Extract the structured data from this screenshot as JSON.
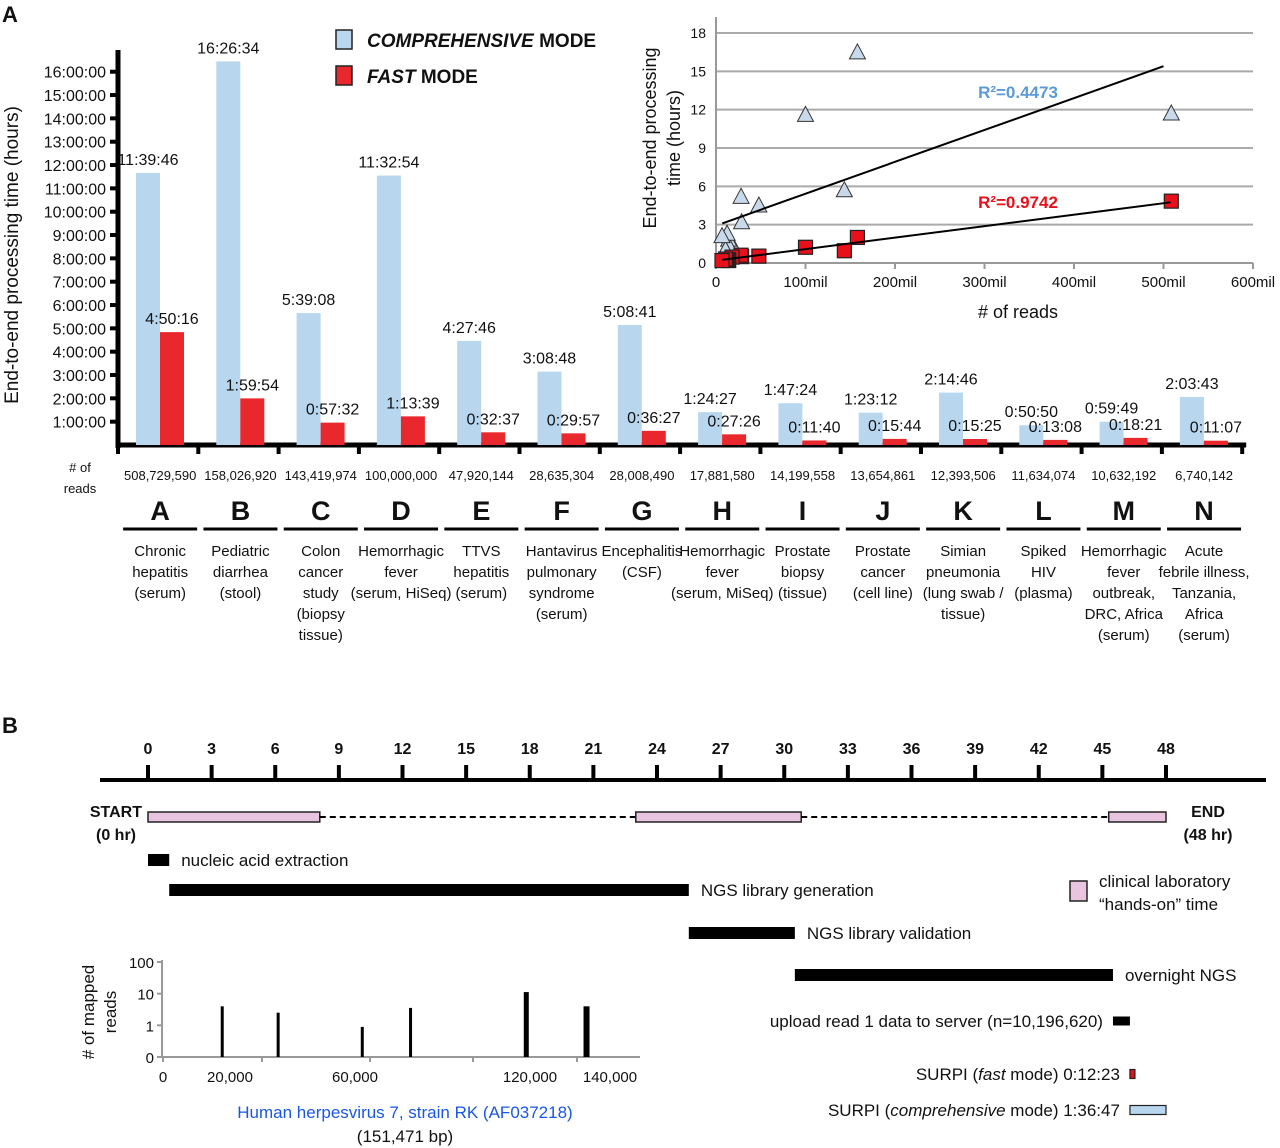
{
  "panel_labels": {
    "a": "A",
    "b": "B"
  },
  "chart_data": [
    {
      "type": "bar",
      "id": "processing-time-bars",
      "ylabel": "End-to-end processing time (hours)",
      "ylim_hours": [
        0,
        16.8
      ],
      "yticks": [
        "1:00:00",
        "2:00:00",
        "3:00:00",
        "4:00:00",
        "5:00:00",
        "6:00:00",
        "7:00:00",
        "8:00:00",
        "9:00:00",
        "10:00:00",
        "11:00:00",
        "12:00:00",
        "13:00:00",
        "14:00:00",
        "15:00:00",
        "16:00:00"
      ],
      "legend": {
        "placement": "top-center",
        "items": [
          {
            "italic": "COMPREHENSIVE",
            "rest": " MODE",
            "color": "#b8d6ee"
          },
          {
            "italic": "FAST",
            "rest": " MODE",
            "color": "#e8282c"
          }
        ]
      },
      "reads_label": [
        "# of",
        "reads"
      ],
      "categories": [
        "A",
        "B",
        "C",
        "D",
        "E",
        "F",
        "G",
        "H",
        "I",
        "J",
        "K",
        "L",
        "M",
        "N"
      ],
      "reads": [
        "508,729,590",
        "158,026,920",
        "143,419,974",
        "100,000,000",
        "47,920,144",
        "28,635,304",
        "28,008,490",
        "17,881,580",
        "14,199,558",
        "13,654,861",
        "12,393,506",
        "11,634,074",
        "10,632,192",
        "6,740,142"
      ],
      "descriptions": [
        [
          "Chronic",
          "hepatitis",
          "(serum)"
        ],
        [
          "Pediatric",
          "diarrhea",
          "(stool)"
        ],
        [
          "Colon",
          "cancer",
          "study",
          "(biopsy",
          "tissue)"
        ],
        [
          "Hemorrhagic",
          "fever",
          "(serum, HiSeq)"
        ],
        [
          "TTVS",
          "hepatitis",
          "(serum)"
        ],
        [
          "Hantavirus",
          "pulmonary",
          "syndrome",
          "(serum)"
        ],
        [
          "Encephalitis",
          "(CSF)"
        ],
        [
          "Hemorrhagic",
          "fever",
          "(serum, MiSeq)"
        ],
        [
          "Prostate",
          "biopsy",
          "(tissue)"
        ],
        [
          "Prostate",
          "cancer",
          "(cell line)"
        ],
        [
          "Simian",
          "pneumonia",
          "(lung swab /",
          "tissue)"
        ],
        [
          "Spiked",
          "HIV",
          "(plasma)"
        ],
        [
          "Hemorrhagic",
          "fever",
          "outbreak,",
          "DRC, Africa",
          "(serum)"
        ],
        [
          "Acute",
          "febrile illness,",
          "Tanzania,",
          "Africa",
          "(serum)"
        ]
      ],
      "series": [
        {
          "name": "COMPREHENSIVE MODE",
          "color": "#b8d6ee",
          "labels": [
            "11:39:46",
            "16:26:34",
            "5:39:08",
            "11:32:54",
            "4:27:46",
            "3:08:48",
            "5:08:41",
            "1:24:27",
            "1:47:24",
            "1:23:12",
            "2:14:46",
            "0:50:50",
            "0:59:49",
            "2:03:43"
          ]
        },
        {
          "name": "FAST MODE",
          "color": "#e8282c",
          "labels": [
            "4:50:16",
            "1:59:54",
            "0:57:32",
            "1:13:39",
            "0:32:37",
            "0:29:57",
            "0:36:27",
            "0:27:26",
            "0:11:40",
            "0:15:44",
            "0:15:25",
            "0:13:08",
            "0:18:21",
            "0:11:07"
          ]
        }
      ]
    },
    {
      "type": "scatter",
      "id": "time-vs-reads-scatter",
      "xlabel": "# of reads",
      "ylabel": [
        "End-to-end processing",
        "time (hours)"
      ],
      "xlim": [
        0,
        600
      ],
      "ylim": [
        0,
        18
      ],
      "xticks": [
        {
          "v": 0,
          "label": "0"
        },
        {
          "v": 100,
          "label": "100mil"
        },
        {
          "v": 200,
          "label": "200mil"
        },
        {
          "v": 300,
          "label": "300mil"
        },
        {
          "v": 400,
          "label": "400mil"
        },
        {
          "v": 500,
          "label": "500mil"
        },
        {
          "v": 600,
          "label": "600mil"
        }
      ],
      "yticks": [
        0,
        3,
        6,
        9,
        12,
        15,
        18
      ],
      "grid": true,
      "series": [
        {
          "name": "comprehensive",
          "marker": "triangle",
          "color": "#c9d9ec",
          "points": [
            [
              508.7,
              11.66
            ],
            [
              158.0,
              16.44
            ],
            [
              143.4,
              5.65
            ],
            [
              100.0,
              11.55
            ],
            [
              47.9,
              4.46
            ],
            [
              28.6,
              3.15
            ],
            [
              28.0,
              5.14
            ],
            [
              17.9,
              1.41
            ],
            [
              14.2,
              1.79
            ],
            [
              13.7,
              1.39
            ],
            [
              12.4,
              2.25
            ],
            [
              11.6,
              0.85
            ],
            [
              10.6,
              1.0
            ],
            [
              6.7,
              2.06
            ]
          ],
          "fit": [
            [
              7,
              3.1
            ],
            [
              500,
              15.4
            ]
          ],
          "r2_label": "R²=0.4473",
          "r2_color": "#5b9bd5"
        },
        {
          "name": "fast",
          "marker": "square",
          "color": "#e8101a",
          "points": [
            [
              508.7,
              4.84
            ],
            [
              158.0,
              2.0
            ],
            [
              143.4,
              0.96
            ],
            [
              100.0,
              1.23
            ],
            [
              47.9,
              0.54
            ],
            [
              28.6,
              0.5
            ],
            [
              28.0,
              0.61
            ],
            [
              17.9,
              0.46
            ],
            [
              14.2,
              0.19
            ],
            [
              13.7,
              0.26
            ],
            [
              12.4,
              0.26
            ],
            [
              11.6,
              0.22
            ],
            [
              10.6,
              0.31
            ],
            [
              6.7,
              0.19
            ]
          ],
          "fit": [
            [
              7,
              0.25
            ],
            [
              508,
              4.75
            ]
          ],
          "r2_label": "R²=0.9742",
          "r2_color": "#e8101a"
        }
      ]
    },
    {
      "type": "timeline",
      "id": "workflow-timeline",
      "xlim_hours": [
        0,
        48
      ],
      "ticks": [
        0,
        3,
        6,
        9,
        12,
        15,
        18,
        21,
        24,
        27,
        30,
        33,
        36,
        39,
        42,
        45,
        48
      ],
      "start_label": [
        "START",
        "(0 hr)"
      ],
      "end_label": [
        "END",
        "(48 hr)"
      ],
      "hands_on_segments": [
        [
          0,
          8.1
        ],
        [
          23,
          30.8
        ],
        [
          45.3,
          48
        ]
      ],
      "hands_on_color": "#e8c4e0",
      "legend": {
        "lines": [
          "clinical laboratory",
          "“hands-on” time"
        ]
      },
      "steps": [
        {
          "label": "nucleic acid extraction",
          "start": 0,
          "end": 1.0,
          "label_side": "right",
          "color": "#000000"
        },
        {
          "label": "NGS library generation",
          "start": 1.0,
          "end": 25.5,
          "label_side": "right",
          "color": "#000000"
        },
        {
          "label": "NGS library validation",
          "start": 25.5,
          "end": 30.5,
          "label_side": "right",
          "color": "#000000"
        },
        {
          "label": "overnight NGS",
          "start": 30.5,
          "end": 45.5,
          "label_side": "right",
          "color": "#000000"
        },
        {
          "label": "upload read 1 data to server (n=10,196,620)",
          "start": 45.5,
          "end": 46.3,
          "label_side": "left",
          "color": "#000000"
        },
        {
          "label_parts": [
            "SURPI (",
            "fast",
            " mode) 0:12:23"
          ],
          "start": 46.3,
          "end": 46.5,
          "label_side": "left",
          "color": "#e8101a"
        },
        {
          "label_parts": [
            "SURPI (",
            "comprehensive",
            " mode) 1:36:47"
          ],
          "start": 46.3,
          "end": 48.0,
          "label_side": "left",
          "color": "#b8d6ee"
        }
      ]
    },
    {
      "type": "bar",
      "id": "genome-coverage",
      "ylabel": [
        "# of mapped",
        "reads"
      ],
      "yticks": [
        "0",
        "1",
        "10",
        "100"
      ],
      "xticks": [
        "0",
        "20,000",
        "60,000",
        "120,000",
        "140,000"
      ],
      "title": "Human herpesvirus 7, strain RK (AF037218)",
      "title_color": "#1a56e8",
      "subtitle": "(151,471 bp)",
      "peaks_log_level": [
        {
          "pos_frac": 0.126,
          "level": 1.6,
          "width": 1
        },
        {
          "pos_frac": 0.243,
          "level": 1.4,
          "width": 1
        },
        {
          "pos_frac": 0.419,
          "level": 0.95,
          "width": 1
        },
        {
          "pos_frac": 0.52,
          "level": 1.55,
          "width": 1
        },
        {
          "pos_frac": 0.76,
          "level": 2.05,
          "width": 3
        },
        {
          "pos_frac": 0.885,
          "level": 1.6,
          "width": 4
        }
      ]
    }
  ]
}
